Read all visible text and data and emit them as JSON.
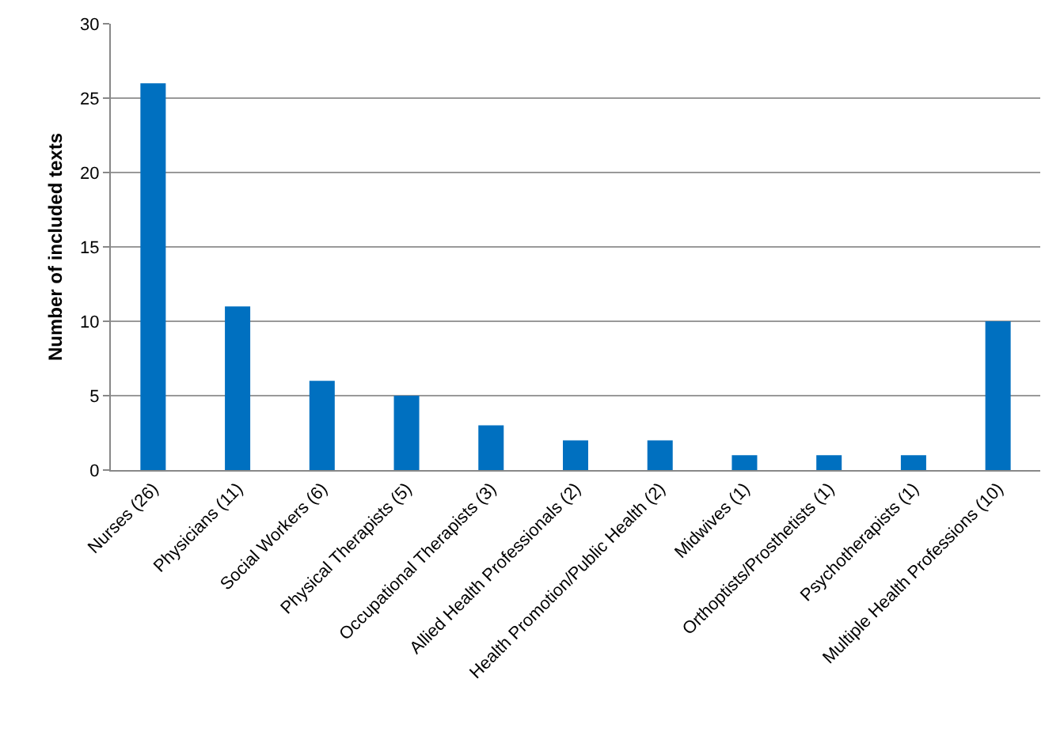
{
  "chart_data": {
    "type": "bar",
    "ylabel": "Number of included texts",
    "categories": [
      "Nurses (26)",
      "Physicians (11)",
      "Social Workers (6)",
      "Physical Therapists (5)",
      "Occupational Therapists (3)",
      "Allied Health Professionals (2)",
      "Health Promotion/Public Health (2)",
      "Midwives (1)",
      "Orthoptists/Prosthetists (1)",
      "Psychotherapists (1)",
      "Multiple Health Professions (10)"
    ],
    "values": [
      26,
      11,
      6,
      5,
      3,
      2,
      2,
      1,
      1,
      1,
      10
    ],
    "color": "#0070c0",
    "ylim": [
      0,
      30
    ],
    "yticks": [
      0,
      5,
      10,
      15,
      20,
      25,
      30
    ],
    "grid": "y",
    "legend": false
  }
}
